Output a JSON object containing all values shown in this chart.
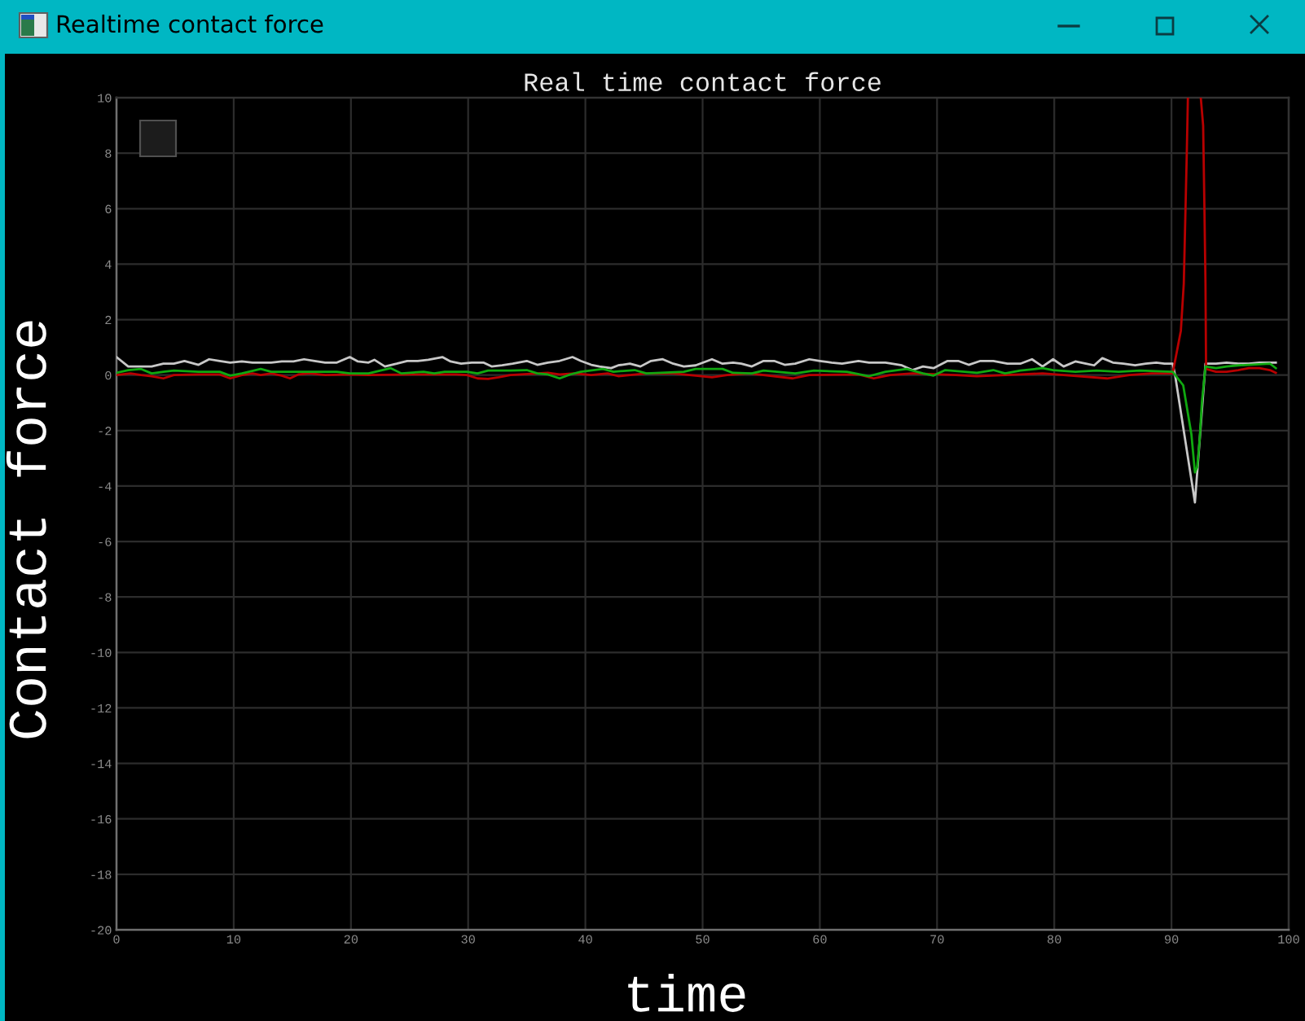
{
  "chart_data": {
    "type": "line",
    "title": "Real time contact force",
    "xlabel": "time",
    "ylabel": "Contact force",
    "annotations": [
      "Realtime contact force"
    ],
    "xlim": [
      0,
      100
    ],
    "ylim": [
      -20,
      10
    ],
    "xticks": [
      0,
      10,
      20,
      30,
      40,
      50,
      60,
      70,
      80,
      90,
      100
    ],
    "yticks": [
      -20,
      -18,
      -16,
      -14,
      -12,
      -10,
      -8,
      -6,
      -4,
      -2,
      0,
      2,
      4,
      6,
      8,
      10
    ],
    "grid": true,
    "series": [
      {
        "color": "#c8c8c8",
        "x": [
          0,
          1,
          3,
          4,
          4.9,
          5.8,
          7,
          7.9,
          8.8,
          9.7,
          10.7,
          11.6,
          13.2,
          14.1,
          15.1,
          16,
          16.9,
          17.8,
          18.8,
          19.9,
          20.6,
          21.5,
          22,
          22.9,
          23.9,
          24.8,
          25.7,
          26.6,
          27.8,
          28.5,
          29.4,
          30.3,
          31.3,
          32,
          32.9,
          33.8,
          35,
          35.9,
          36.8,
          37.8,
          38.9,
          39.6,
          40.5,
          41.2,
          42.2,
          42.8,
          43.8,
          44.7,
          45.6,
          46.6,
          47.5,
          48.4,
          49.4,
          50.8,
          51.7,
          52.6,
          53.3,
          54.2,
          55.2,
          56.1,
          57,
          57.9,
          59.1,
          60,
          61,
          61.9,
          63.3,
          64.2,
          65.6,
          67,
          67.9,
          68.8,
          69.7,
          70.9,
          71.8,
          72.7,
          73.7,
          74.8,
          76,
          77.1,
          78.1,
          79,
          79.9,
          80.8,
          81.8,
          82.7,
          83.4,
          84.1,
          85,
          85.9,
          86.9,
          87.8,
          88.7,
          89.4,
          90.1,
          90.3,
          92,
          92.9,
          93.8,
          94.7,
          95.7,
          96.6,
          97.5,
          98.9
        ],
        "values": [
          0.65,
          0.31,
          0.31,
          0.41,
          0.41,
          0.51,
          0.37,
          0.57,
          0.51,
          0.45,
          0.49,
          0.45,
          0.45,
          0.49,
          0.49,
          0.57,
          0.51,
          0.45,
          0.45,
          0.65,
          0.49,
          0.45,
          0.55,
          0.31,
          0.41,
          0.51,
          0.51,
          0.55,
          0.65,
          0.49,
          0.41,
          0.45,
          0.45,
          0.31,
          0.35,
          0.41,
          0.51,
          0.37,
          0.45,
          0.51,
          0.65,
          0.51,
          0.37,
          0.31,
          0.25,
          0.35,
          0.41,
          0.31,
          0.51,
          0.57,
          0.41,
          0.31,
          0.35,
          0.57,
          0.41,
          0.45,
          0.41,
          0.31,
          0.51,
          0.51,
          0.37,
          0.41,
          0.57,
          0.51,
          0.45,
          0.41,
          0.51,
          0.45,
          0.45,
          0.35,
          0.18,
          0.31,
          0.25,
          0.51,
          0.51,
          0.37,
          0.51,
          0.51,
          0.41,
          0.41,
          0.57,
          0.31,
          0.57,
          0.31,
          0.49,
          0.41,
          0.35,
          0.61,
          0.45,
          0.41,
          0.35,
          0.41,
          0.45,
          0.41,
          0.41,
          0.02,
          -4.59,
          0.41,
          0.41,
          0.45,
          0.41,
          0.41,
          0.45,
          0.45
        ]
      },
      {
        "color": "#b80000",
        "x": [
          0,
          1.2,
          2.1,
          3,
          4,
          4.9,
          7,
          8.8,
          9.7,
          10.7,
          11.6,
          12.3,
          13.2,
          14.1,
          14.8,
          15.5,
          16.5,
          17.8,
          19.9,
          21.5,
          25.3,
          29,
          29.9,
          30.8,
          31.7,
          32.6,
          33.6,
          36.8,
          37.8,
          39.1,
          40.5,
          41.9,
          42.8,
          43.8,
          45.2,
          47.5,
          50.8,
          52.1,
          54,
          57.7,
          59.1,
          63.3,
          64.6,
          66,
          67.9,
          71.6,
          73.4,
          77.1,
          79,
          80.8,
          84.5,
          86.4,
          88.3,
          90.1,
          90.8,
          91.05,
          91.3,
          91.4,
          92,
          92.5,
          92.7,
          92.8,
          92.9,
          92.95,
          93.8,
          94.7,
          95.7,
          96.6,
          97.5,
          98.4,
          98.9
        ],
        "values": [
          0,
          0.06,
          0,
          -0.04,
          -0.12,
          0,
          0.02,
          0.02,
          -0.12,
          0,
          0.06,
          0,
          0.06,
          -0.02,
          -0.12,
          0.02,
          0.06,
          0,
          0.02,
          0,
          0.02,
          0.02,
          0,
          -0.12,
          -0.14,
          -0.08,
          0,
          0.08,
          0.02,
          0.06,
          0,
          0.06,
          -0.04,
          0,
          0.06,
          0.06,
          -0.08,
          0,
          0.06,
          -0.12,
          0,
          0.02,
          -0.12,
          0,
          0.06,
          0,
          -0.04,
          0.02,
          0.06,
          0,
          -0.12,
          0,
          0.06,
          0.06,
          1.6,
          3.3,
          7.9,
          10,
          null,
          10,
          9.0,
          6.3,
          3.3,
          0.22,
          0.12,
          0.12,
          0.18,
          0.25,
          0.25,
          0.18,
          0.08
        ]
      },
      {
        "color": "#10a810",
        "x": [
          0,
          1,
          2.1,
          3,
          4,
          4.9,
          7,
          8.8,
          9.7,
          10.7,
          12.3,
          13.2,
          15.1,
          16.9,
          18.8,
          19.9,
          21.5,
          23.4,
          24.3,
          26.2,
          27.1,
          28,
          29.9,
          30.8,
          31.7,
          33.6,
          35,
          35.9,
          36.8,
          37.8,
          38.7,
          39.6,
          41.5,
          42.4,
          44.2,
          45.2,
          48.4,
          49.4,
          51.7,
          52.6,
          54.2,
          55.2,
          57.9,
          59.5,
          62.3,
          64.2,
          65.6,
          67.4,
          68.8,
          69.7,
          70.7,
          73.4,
          74.8,
          75.8,
          77.1,
          79,
          79.9,
          81.8,
          83.6,
          85.5,
          87.3,
          90.1,
          91,
          91.7,
          92,
          92.2,
          92.4,
          92.6,
          92.9,
          93.8,
          94.7,
          95.7,
          96.6,
          98.4,
          98.9
        ],
        "values": [
          0.08,
          0.18,
          0.22,
          0.06,
          0.12,
          0.16,
          0.12,
          0.12,
          -0.02,
          0.06,
          0.22,
          0.12,
          0.12,
          0.12,
          0.12,
          0.06,
          0.06,
          0.25,
          0.06,
          0.12,
          0.06,
          0.12,
          0.12,
          0.06,
          0.16,
          0.16,
          0.18,
          0.06,
          0.02,
          -0.12,
          0.02,
          0.12,
          0.22,
          0.12,
          0.18,
          0.06,
          0.12,
          0.22,
          0.22,
          0.08,
          0.06,
          0.16,
          0.06,
          0.16,
          0.12,
          -0.04,
          0.12,
          0.22,
          0.06,
          -0.02,
          0.18,
          0.08,
          0.18,
          0.06,
          0.16,
          0.25,
          0.18,
          0.12,
          0.16,
          0.12,
          0.16,
          0.12,
          -0.37,
          -2.14,
          -3.51,
          -3.31,
          -2.33,
          -0.96,
          0.31,
          0.25,
          0.31,
          0.35,
          0.37,
          0.41,
          0.25
        ]
      }
    ]
  }
}
